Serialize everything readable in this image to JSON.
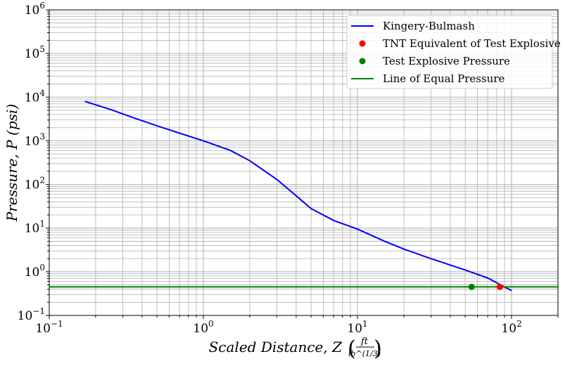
{
  "chart_data": {
    "type": "line",
    "x_scale": "log",
    "y_scale": "log",
    "xlim": [
      0.1,
      200
    ],
    "ylim": [
      0.1,
      1000000
    ],
    "grid": true,
    "grid_minor": true,
    "legend_position": "top-right",
    "xlabel": "Scaled Distance, Z",
    "xlabel_unit_numerator": "ft",
    "xlabel_unit_denominator": "lb^(1/3)",
    "ylabel": "Pressure, P (psi)",
    "x_ticks": [
      {
        "base": "10",
        "exp": "−1",
        "value": 0.1
      },
      {
        "base": "10",
        "exp": "0",
        "value": 1
      },
      {
        "base": "10",
        "exp": "1",
        "value": 10
      },
      {
        "base": "10",
        "exp": "2",
        "value": 100
      }
    ],
    "y_ticks": [
      {
        "base": "10",
        "exp": "−1",
        "value": 0.1
      },
      {
        "base": "10",
        "exp": "0",
        "value": 1
      },
      {
        "base": "10",
        "exp": "1",
        "value": 10
      },
      {
        "base": "10",
        "exp": "2",
        "value": 100
      },
      {
        "base": "10",
        "exp": "3",
        "value": 1000
      },
      {
        "base": "10",
        "exp": "4",
        "value": 10000
      },
      {
        "base": "10",
        "exp": "5",
        "value": 100000
      },
      {
        "base": "10",
        "exp": "6",
        "value": 1000000
      }
    ],
    "series": [
      {
        "name": "Kingery-Bulmash",
        "kind": "line",
        "color": "#0000ff",
        "x": [
          0.17,
          0.25,
          0.35,
          0.5,
          0.7,
          1.0,
          1.5,
          2.0,
          3.0,
          4.0,
          5.0,
          7.0,
          10.0,
          15.0,
          20.0,
          30.0,
          50.0,
          70.0,
          100.0
        ],
        "y": [
          8000,
          5200,
          3400,
          2200,
          1500,
          1000,
          600,
          350,
          130,
          55,
          28,
          15,
          9.5,
          5.0,
          3.3,
          2.0,
          1.1,
          0.72,
          0.37
        ]
      },
      {
        "name": "TNT Equivalent of Test Explosive",
        "kind": "point",
        "color": "#ff0000",
        "x": [
          84
        ],
        "y": [
          0.45
        ]
      },
      {
        "name": "Test Explosive Pressure",
        "kind": "point",
        "color": "#008000",
        "x": [
          55
        ],
        "y": [
          0.45
        ]
      },
      {
        "name": "Line of Equal Pressure",
        "kind": "hline",
        "color": "#008000",
        "y": 0.45
      }
    ]
  }
}
